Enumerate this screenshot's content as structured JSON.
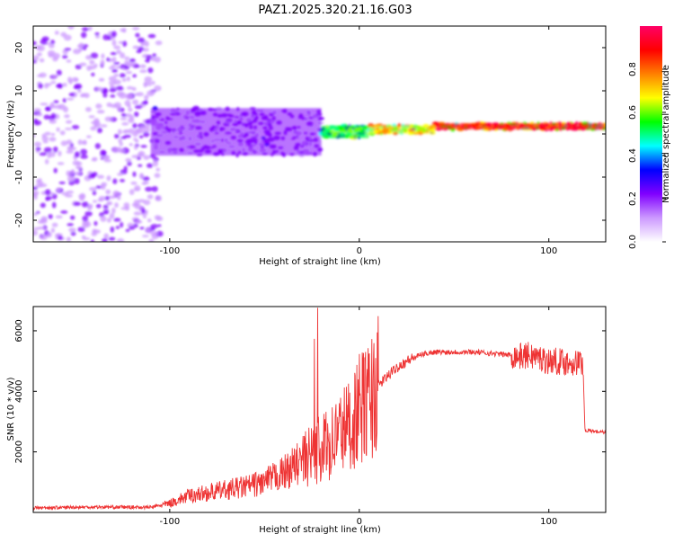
{
  "title": "PAZ1.2025.320.21.16.G03",
  "chart_data": [
    {
      "type": "heatmap",
      "name": "spectrogram",
      "xlabel": "Height of straight line (km)",
      "ylabel": "Frequency (Hz)",
      "xlim": [
        -172,
        130
      ],
      "ylim": [
        -25,
        25
      ],
      "x_ticks": [
        -100,
        0,
        100
      ],
      "y_ticks": [
        20,
        10,
        0,
        -10,
        -20
      ],
      "colorbar": {
        "label": "Normalized spectral amplitude",
        "range": [
          0,
          1
        ],
        "ticks": [
          "0.0",
          "0.2",
          "0.4",
          "0.6",
          "0.8"
        ],
        "colors": [
          "#ffffff",
          "#cc99ff",
          "#8000ff",
          "#0000ff",
          "#00ffff",
          "#00ff00",
          "#ffff00",
          "#ff8000",
          "#ff0000",
          "#ff0066"
        ]
      },
      "regions": [
        {
          "x_range": [
            -172,
            -105
          ],
          "freq_range": [
            -25,
            25
          ],
          "amplitude": 0.1,
          "description": "noise"
        },
        {
          "x_range": [
            -110,
            -20
          ],
          "freq_range": [
            -5,
            6
          ],
          "amplitude": 0.2
        },
        {
          "x_range": [
            -20,
            5
          ],
          "freq_range": [
            -1,
            2
          ],
          "amplitude": 0.5
        },
        {
          "x_range": [
            5,
            40
          ],
          "freq_range": [
            0,
            2
          ],
          "amplitude": 0.7
        },
        {
          "x_range": [
            40,
            130
          ],
          "freq_range": [
            1,
            2.5
          ],
          "amplitude": 0.9
        }
      ]
    },
    {
      "type": "line",
      "name": "snr",
      "xlabel": "Height of straight line (km)",
      "ylabel": "SNR (10 * v/v)",
      "xlim": [
        -172,
        130
      ],
      "ylim": [
        0,
        6800
      ],
      "x_ticks": [
        -100,
        0,
        100
      ],
      "y_ticks": [
        2000,
        4000,
        6000
      ],
      "color": "#ee3333",
      "series": [
        {
          "name": "SNR",
          "x": [
            -172,
            -140,
            -110,
            -100,
            -90,
            -80,
            -70,
            -60,
            -50,
            -40,
            -30,
            -25,
            -20,
            -15,
            -10,
            -5,
            0,
            5,
            10,
            15,
            20,
            25,
            30,
            35,
            40,
            50,
            60,
            70,
            80,
            85,
            90,
            95,
            100,
            105,
            110,
            118,
            119,
            120,
            130
          ],
          "y": [
            150,
            180,
            170,
            300,
            550,
            650,
            750,
            850,
            1000,
            1300,
            1700,
            1900,
            2100,
            2300,
            2700,
            2900,
            3400,
            3700,
            4200,
            4500,
            4800,
            5000,
            5150,
            5250,
            5300,
            5300,
            5300,
            5250,
            5200,
            5150,
            5200,
            5100,
            5000,
            5000,
            4950,
            4950,
            2750,
            2700,
            2650
          ]
        }
      ]
    }
  ]
}
